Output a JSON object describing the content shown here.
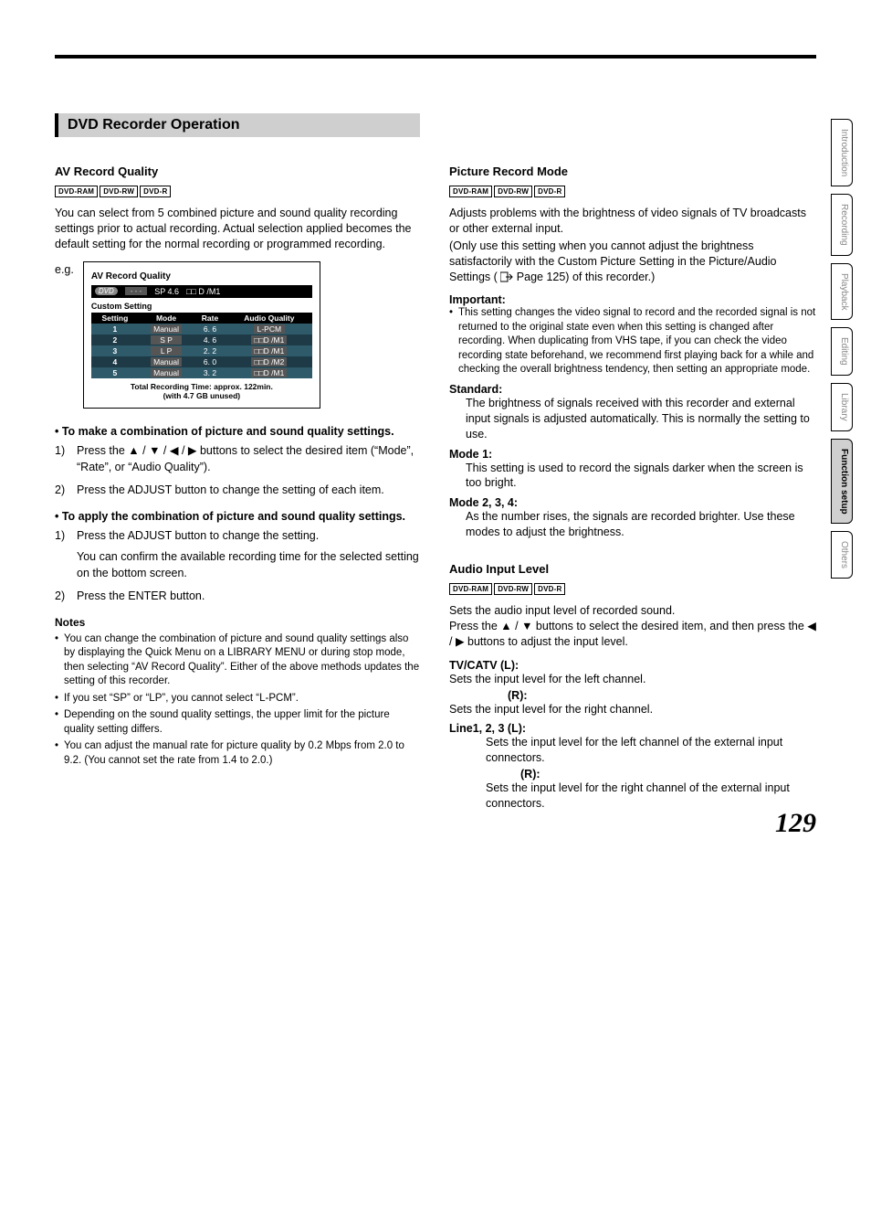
{
  "page_number": "129",
  "side_tabs": [
    "Introduction",
    "Recording",
    "Playback",
    "Editing",
    "Library",
    "Function setup",
    "Others"
  ],
  "side_active_index": 5,
  "section_title": "DVD Recorder Operation",
  "left": {
    "av_quality_head": "AV Record Quality",
    "badges": [
      "DVD-RAM",
      "DVD-RW",
      "DVD-R"
    ],
    "intro": "You can select from 5 combined picture and sound quality recording settings prior to actual recording. Actual selection applied becomes the default setting for the normal recording or programmed recording.",
    "eg": "e.g.",
    "screen": {
      "title": "AV Record Quality",
      "top_dvd": "DVD",
      "top_dash": "- - -",
      "top_sp": "SP 4.6",
      "top_dd": "□□ D /M1",
      "custom": "Custom Setting",
      "cols": [
        "Setting",
        "Mode",
        "Rate",
        "Audio Quality"
      ],
      "rows": [
        {
          "n": "1",
          "mode": "Manual",
          "rate": "6. 6",
          "aq": "L-PCM"
        },
        {
          "n": "2",
          "mode": "S P",
          "rate": "4. 6",
          "aq": "□□D /M1"
        },
        {
          "n": "3",
          "mode": "L P",
          "rate": "2. 2",
          "aq": "□□D /M1"
        },
        {
          "n": "4",
          "mode": "Manual",
          "rate": "6. 0",
          "aq": "□□D /M2"
        },
        {
          "n": "5",
          "mode": "Manual",
          "rate": "3. 2",
          "aq": "□□D /M1"
        }
      ],
      "footer1": "Total Recording Time: approx. 122min.",
      "footer2": "(with 4.7 GB unused)"
    },
    "combo_head": "• To make a combination of picture and sound quality settings.",
    "combo_steps": [
      "Press the ▲ / ▼ / ◀ / ▶ buttons to select the desired item (“Mode”, “Rate”, or “Audio Quality”).",
      "Press the ADJUST button to change the setting of each item."
    ],
    "apply_head": "• To apply the combination of picture and sound quality settings.",
    "apply_steps": [
      "Press the ADJUST button to change the setting.",
      "Press the ENTER button."
    ],
    "apply_note": "You can confirm the available recording time for the selected setting on the bottom screen.",
    "notes_head": "Notes",
    "notes": [
      "You can change the combination of picture and sound quality settings also by displaying the Quick Menu on a LIBRARY MENU or during stop mode, then selecting “AV Record Quality”. Either of the above methods updates the setting of this recorder.",
      "If you set “SP” or “LP”, you cannot select “L-PCM”.",
      "Depending on the sound quality settings, the upper limit for the picture quality setting differs.",
      "You can adjust the manual rate for picture quality by 0.2 Mbps from 2.0 to 9.2. (You cannot set the rate from 1.4 to 2.0.)"
    ]
  },
  "right": {
    "pic_head": "Picture Record Mode",
    "badges": [
      "DVD-RAM",
      "DVD-RW",
      "DVD-R"
    ],
    "pic_intro1": "Adjusts problems with the brightness of video signals of TV broadcasts or other external input.",
    "pic_intro2a": "(Only use this setting when you cannot adjust the brightness satisfactorily with the Custom Picture Setting in the Picture/Audio Settings (",
    "pic_intro2b": " Page 125) of this recorder.)",
    "important_head": "Important:",
    "important_body": "This setting changes the video signal to record and the recorded signal is not returned to the original state even when this setting is changed after recording. When duplicating from VHS tape, if you can check the video recording state beforehand, we recommend first playing back for a while and checking the overall brightness tendency, then setting an appropriate mode.",
    "defs": [
      {
        "term": "Standard:",
        "body": "The brightness of signals received with this recorder and external input signals is adjusted automatically. This is normally the setting to use."
      },
      {
        "term": "Mode 1:",
        "body": "This setting is used to record the signals darker when the screen is too bright."
      },
      {
        "term": "Mode 2, 3, 4:",
        "body": "As the number rises, the signals are recorded brighter. Use these modes to adjust the brightness."
      }
    ],
    "audio_head": "Audio Input Level",
    "audio_intro": "Sets the audio input level of recorded sound.\nPress the ▲ / ▼ buttons to select the desired item, and then press the ◀ / ▶ buttons to adjust the input level.",
    "tv_l": "TV/CATV   (L):",
    "tv_l_body": "Sets the input level for the left channel.",
    "tv_r": "(R):",
    "tv_r_body": "Sets the input level for the right channel.",
    "line_l": "Line1, 2, 3 (L):",
    "line_l_body": "Sets the input level for the left channel of the external input connectors.",
    "line_r": "(R):",
    "line_r_body": "Sets the input level for the right channel of the external input connectors."
  }
}
